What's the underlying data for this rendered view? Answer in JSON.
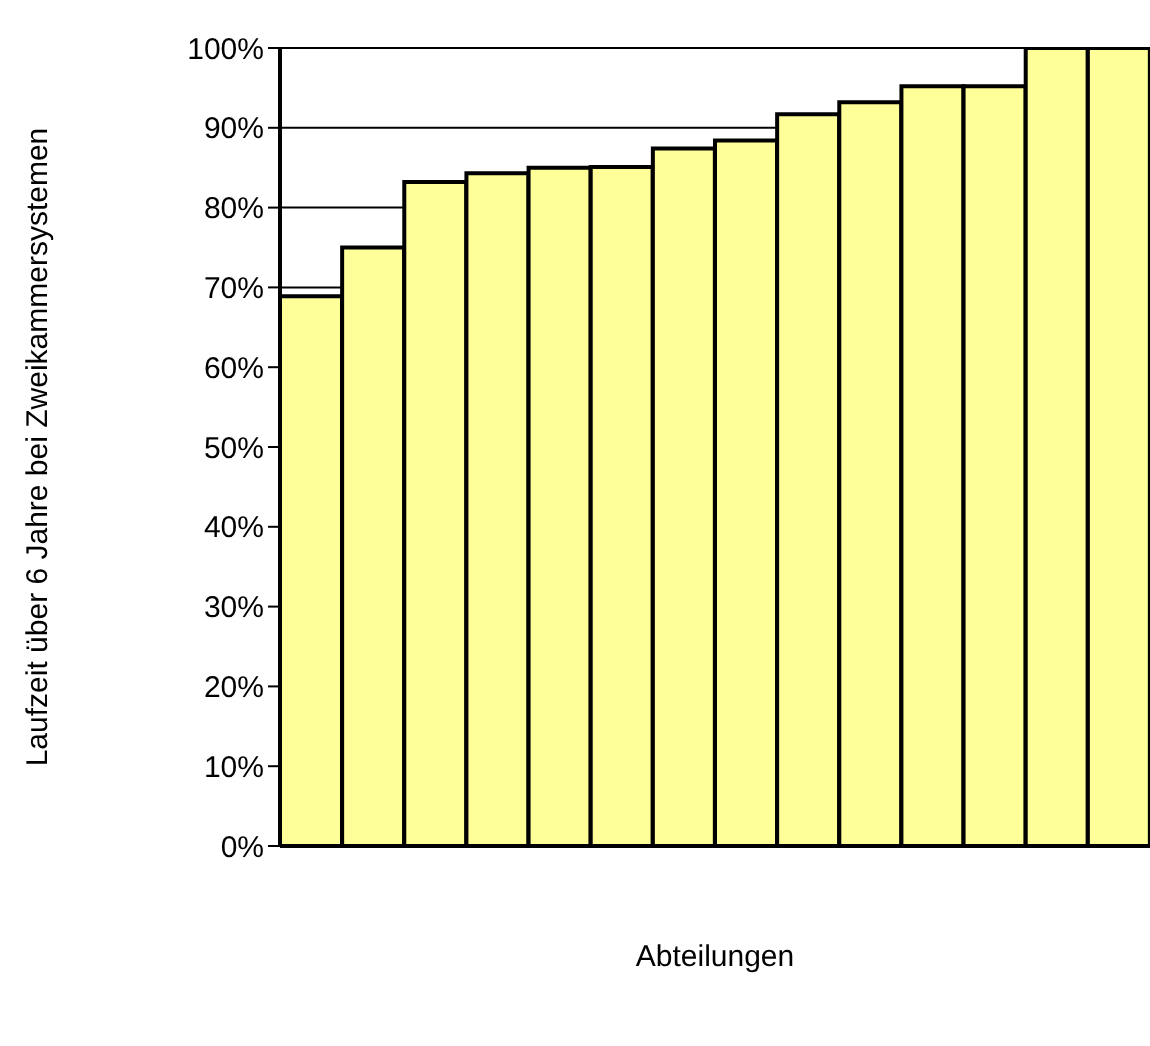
{
  "chart_data": {
    "type": "bar",
    "xlabel": "Abteilungen",
    "ylabel": "Laufzeit über 6 Jahre bei Zweikammersystemen",
    "categories": [
      null,
      null,
      null,
      null,
      null,
      null,
      null,
      null,
      null,
      null,
      null,
      null,
      null,
      null
    ],
    "values": [
      68.9,
      75,
      83.2,
      84.3,
      85,
      85.1,
      87.4,
      88.4,
      91.7,
      93.2,
      95.2,
      95.2,
      100,
      100
    ],
    "color": "#ffff99",
    "ylim": [
      0,
      100
    ],
    "yticks": [
      {
        "value": 0,
        "label": "0%"
      },
      {
        "value": 10,
        "label": "10%"
      },
      {
        "value": 20,
        "label": "20%"
      },
      {
        "value": 30,
        "label": "30%"
      },
      {
        "value": 40,
        "label": "40%"
      },
      {
        "value": 50,
        "label": "50%"
      },
      {
        "value": 60,
        "label": "60%"
      },
      {
        "value": 70,
        "label": "70%"
      },
      {
        "value": 80,
        "label": "80%"
      },
      {
        "value": 90,
        "label": "90%"
      },
      {
        "value": 100,
        "label": "100%"
      }
    ],
    "grid": "y"
  }
}
